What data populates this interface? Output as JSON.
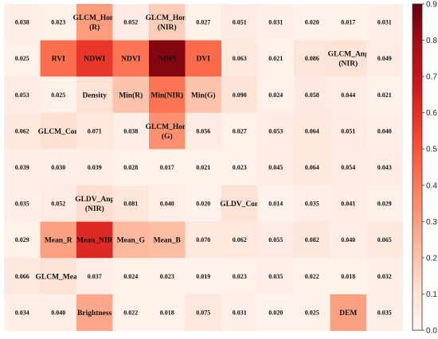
{
  "chart_data": {
    "type": "heatmap",
    "colormap": "Reds",
    "rows": 9,
    "cols": 11,
    "value_range": [
      0,
      0.9
    ],
    "colorbar_ticks": [
      "0.0",
      "0.1",
      "0.2",
      "0.3",
      "0.4",
      "0.5",
      "0.6",
      "0.7",
      "0.8",
      "0.9"
    ],
    "colorbar_tick_values": [
      0,
      0.1,
      0.2,
      0.3,
      0.4,
      0.5,
      0.6,
      0.7,
      0.8,
      0.9
    ],
    "cells": [
      [
        {
          "label": "0.038",
          "value": 0.038
        },
        {
          "label": "0.023",
          "value": 0.023
        },
        {
          "label": "GLCM_Hom\n(R)",
          "value": 0.31
        },
        {
          "label": "0.052",
          "value": 0.052
        },
        {
          "label": "GLCM_Hom\n(NIR)",
          "value": 0.17
        },
        {
          "label": "0.027",
          "value": 0.027
        },
        {
          "label": "0.051",
          "value": 0.051
        },
        {
          "label": "0.031",
          "value": 0.031
        },
        {
          "label": "0.020",
          "value": 0.02
        },
        {
          "label": "0.017",
          "value": 0.017
        },
        {
          "label": "0.031",
          "value": 0.031
        }
      ],
      [
        {
          "label": "0.025",
          "value": 0.025
        },
        {
          "label": "RVI",
          "value": 0.44
        },
        {
          "label": "NDWI",
          "value": 0.58
        },
        {
          "label": "NDVI",
          "value": 0.42
        },
        {
          "label": "NDPI",
          "value": 0.85
        },
        {
          "label": "DVI",
          "value": 0.45
        },
        {
          "label": "0.063",
          "value": 0.063
        },
        {
          "label": "0.021",
          "value": 0.021
        },
        {
          "label": "0.086",
          "value": 0.086
        },
        {
          "label": "GLCM_Ang\n(NIR)",
          "value": 0.1
        },
        {
          "label": "0.049",
          "value": 0.049
        }
      ],
      [
        {
          "label": "0.053",
          "value": 0.053
        },
        {
          "label": "0.025",
          "value": 0.025
        },
        {
          "label": "Density",
          "value": 0.1
        },
        {
          "label": "Min(R)",
          "value": 0.2
        },
        {
          "label": "Min(NIR)",
          "value": 0.42
        },
        {
          "label": "Min(G)",
          "value": 0.2
        },
        {
          "label": "0.090",
          "value": 0.09
        },
        {
          "label": "0.024",
          "value": 0.024
        },
        {
          "label": "0.058",
          "value": 0.058
        },
        {
          "label": "0.044",
          "value": 0.044
        },
        {
          "label": "0.021",
          "value": 0.021
        }
      ],
      [
        {
          "label": "0.062",
          "value": 0.062
        },
        {
          "label": "GLCM_Con",
          "value": 0.11
        },
        {
          "label": "0.071",
          "value": 0.071
        },
        {
          "label": "0.038",
          "value": 0.038
        },
        {
          "label": "GLCM_Hom\n(G)",
          "value": 0.34
        },
        {
          "label": "0.056",
          "value": 0.056
        },
        {
          "label": "0.027",
          "value": 0.027
        },
        {
          "label": "0.053",
          "value": 0.053
        },
        {
          "label": "0.064",
          "value": 0.064
        },
        {
          "label": "0.051",
          "value": 0.051
        },
        {
          "label": "0.040",
          "value": 0.04
        }
      ],
      [
        {
          "label": "0.039",
          "value": 0.039
        },
        {
          "label": "0.030",
          "value": 0.03
        },
        {
          "label": "0.039",
          "value": 0.039
        },
        {
          "label": "0.028",
          "value": 0.028
        },
        {
          "label": "0.017",
          "value": 0.017
        },
        {
          "label": "0.021",
          "value": 0.021
        },
        {
          "label": "0.023",
          "value": 0.023
        },
        {
          "label": "0.045",
          "value": 0.045
        },
        {
          "label": "0.064",
          "value": 0.064
        },
        {
          "label": "0.054",
          "value": 0.054
        },
        {
          "label": "0.043",
          "value": 0.043
        }
      ],
      [
        {
          "label": "0.035",
          "value": 0.035
        },
        {
          "label": "0.052",
          "value": 0.052
        },
        {
          "label": "GLDV_Ang\n(NIR)",
          "value": 0.12
        },
        {
          "label": "0.081",
          "value": 0.081
        },
        {
          "label": "0.040",
          "value": 0.04
        },
        {
          "label": "0.020",
          "value": 0.02
        },
        {
          "label": "GLDV_Con",
          "value": 0.1
        },
        {
          "label": "0.014",
          "value": 0.014
        },
        {
          "label": "0.035",
          "value": 0.035
        },
        {
          "label": "0.041",
          "value": 0.041
        },
        {
          "label": "0.029",
          "value": 0.029
        }
      ],
      [
        {
          "label": "0.029",
          "value": 0.029
        },
        {
          "label": "Mean_R",
          "value": 0.3
        },
        {
          "label": "Mean_NIR",
          "value": 0.62
        },
        {
          "label": "Mean_G",
          "value": 0.23
        },
        {
          "label": "Mean_B",
          "value": 0.22
        },
        {
          "label": "0.070",
          "value": 0.07
        },
        {
          "label": "0.062",
          "value": 0.062
        },
        {
          "label": "0.055",
          "value": 0.055
        },
        {
          "label": "0.082",
          "value": 0.082
        },
        {
          "label": "0.040",
          "value": 0.04
        },
        {
          "label": "0.065",
          "value": 0.065
        }
      ],
      [
        {
          "label": "0.066",
          "value": 0.066
        },
        {
          "label": "GLCM_Mean",
          "value": 0.1
        },
        {
          "label": "0.037",
          "value": 0.037
        },
        {
          "label": "0.024",
          "value": 0.024
        },
        {
          "label": "0.023",
          "value": 0.023
        },
        {
          "label": "0.019",
          "value": 0.019
        },
        {
          "label": "0.023",
          "value": 0.023
        },
        {
          "label": "0.035",
          "value": 0.035
        },
        {
          "label": "0.022",
          "value": 0.022
        },
        {
          "label": "0.018",
          "value": 0.018
        },
        {
          "label": "0.032",
          "value": 0.032
        }
      ],
      [
        {
          "label": "0.034",
          "value": 0.034
        },
        {
          "label": "0.040",
          "value": 0.04
        },
        {
          "label": "Brightness",
          "value": 0.28
        },
        {
          "label": "0.022",
          "value": 0.022
        },
        {
          "label": "0.018",
          "value": 0.018
        },
        {
          "label": "0.075",
          "value": 0.075
        },
        {
          "label": "0.031",
          "value": 0.031
        },
        {
          "label": "0.020",
          "value": 0.02
        },
        {
          "label": "0.025",
          "value": 0.025
        },
        {
          "label": "DEM",
          "value": 0.3
        },
        {
          "label": "0.035",
          "value": 0.035
        }
      ]
    ]
  }
}
